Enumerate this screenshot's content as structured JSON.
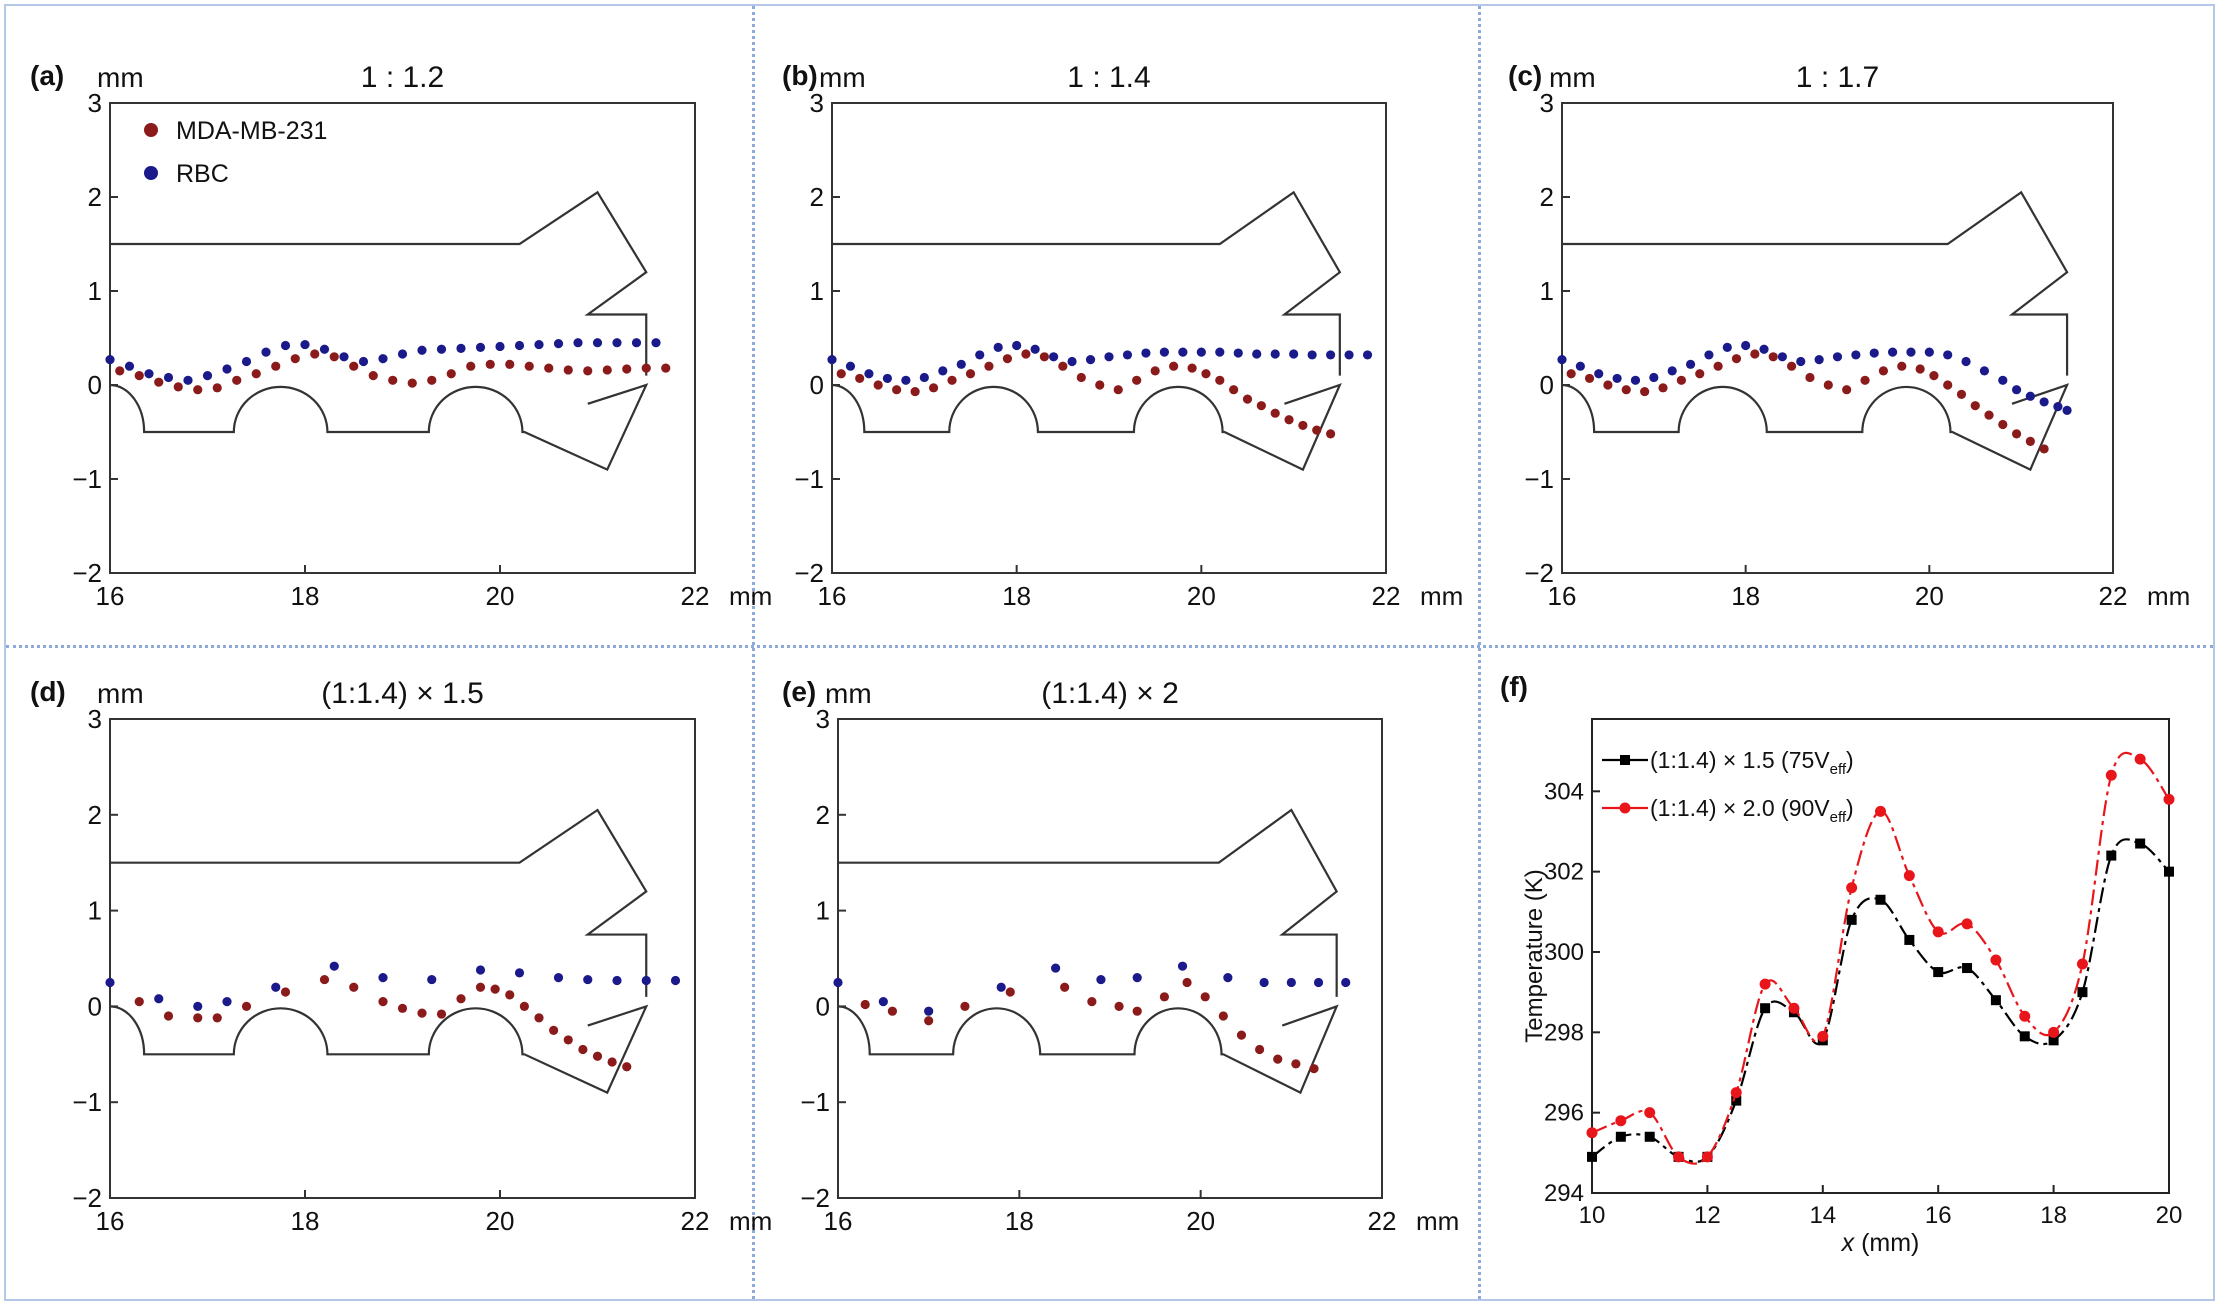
{
  "chart_data": [
    {
      "panel": "(a)",
      "title": "1 : 1.2",
      "type": "scatter",
      "xlabel": "mm",
      "ylabel": "mm",
      "xlim": [
        16,
        22
      ],
      "ylim": [
        -2,
        3
      ],
      "xticks": [
        "16",
        "18",
        "20",
        "22"
      ],
      "yticks": [
        "−2",
        "−1",
        "0",
        "1",
        "2",
        "3"
      ],
      "legend": {
        "placement": "top-left",
        "entries": [
          "MDA-MB-231",
          "RBC"
        ]
      },
      "colors": {
        "MDA-MB-231": "#8b1a1a",
        "RBC": "#1a1a8b"
      },
      "series": [
        {
          "name": "MDA-MB-231",
          "x": [
            16.1,
            16.3,
            16.5,
            16.7,
            16.9,
            17.1,
            17.3,
            17.5,
            17.7,
            17.9,
            18.1,
            18.3,
            18.5,
            18.7,
            18.9,
            19.1,
            19.3,
            19.5,
            19.7,
            19.9,
            20.1,
            20.3,
            20.5,
            20.7,
            20.9,
            21.1,
            21.3,
            21.5,
            21.7
          ],
          "y": [
            0.15,
            0.1,
            0.03,
            -0.02,
            -0.05,
            -0.03,
            0.05,
            0.12,
            0.2,
            0.28,
            0.33,
            0.3,
            0.2,
            0.1,
            0.05,
            0.02,
            0.05,
            0.12,
            0.2,
            0.22,
            0.22,
            0.2,
            0.18,
            0.16,
            0.15,
            0.16,
            0.17,
            0.18,
            0.18
          ]
        },
        {
          "name": "RBC",
          "x": [
            16.0,
            16.2,
            16.4,
            16.6,
            16.8,
            17.0,
            17.2,
            17.4,
            17.6,
            17.8,
            18.0,
            18.2,
            18.4,
            18.6,
            18.8,
            19.0,
            19.2,
            19.4,
            19.6,
            19.8,
            20.0,
            20.2,
            20.4,
            20.6,
            20.8,
            21.0,
            21.2,
            21.4,
            21.6
          ],
          "y": [
            0.27,
            0.2,
            0.12,
            0.08,
            0.05,
            0.1,
            0.17,
            0.25,
            0.35,
            0.42,
            0.43,
            0.38,
            0.3,
            0.25,
            0.28,
            0.33,
            0.37,
            0.38,
            0.39,
            0.4,
            0.41,
            0.42,
            0.43,
            0.44,
            0.45,
            0.45,
            0.45,
            0.45,
            0.45
          ]
        }
      ]
    },
    {
      "panel": "(b)",
      "title": "1 : 1.4",
      "type": "scatter",
      "xlabel": "mm",
      "ylabel": "mm",
      "xlim": [
        16,
        22
      ],
      "ylim": [
        -2,
        3
      ],
      "xticks": [
        "16",
        "18",
        "20",
        "22"
      ],
      "yticks": [
        "−2",
        "−1",
        "0",
        "1",
        "2",
        "3"
      ],
      "colors": {
        "MDA-MB-231": "#8b1a1a",
        "RBC": "#1a1a8b"
      },
      "series": [
        {
          "name": "MDA-MB-231",
          "x": [
            16.1,
            16.3,
            16.5,
            16.7,
            16.9,
            17.1,
            17.3,
            17.5,
            17.7,
            17.9,
            18.1,
            18.3,
            18.5,
            18.7,
            18.9,
            19.1,
            19.3,
            19.5,
            19.7,
            19.9,
            20.05,
            20.2,
            20.35,
            20.5,
            20.65,
            20.8,
            20.95,
            21.1,
            21.25,
            21.4
          ],
          "y": [
            0.12,
            0.07,
            0.0,
            -0.05,
            -0.07,
            -0.03,
            0.05,
            0.12,
            0.2,
            0.28,
            0.33,
            0.3,
            0.2,
            0.08,
            0.0,
            -0.05,
            0.05,
            0.15,
            0.2,
            0.18,
            0.12,
            0.05,
            -0.05,
            -0.15,
            -0.22,
            -0.3,
            -0.37,
            -0.43,
            -0.48,
            -0.52
          ]
        },
        {
          "name": "RBC",
          "x": [
            16.0,
            16.2,
            16.4,
            16.6,
            16.8,
            17.0,
            17.2,
            17.4,
            17.6,
            17.8,
            18.0,
            18.2,
            18.4,
            18.6,
            18.8,
            19.0,
            19.2,
            19.4,
            19.6,
            19.8,
            20.0,
            20.2,
            20.4,
            20.6,
            20.8,
            21.0,
            21.2,
            21.4,
            21.6,
            21.8
          ],
          "y": [
            0.27,
            0.2,
            0.12,
            0.07,
            0.05,
            0.08,
            0.15,
            0.22,
            0.32,
            0.4,
            0.42,
            0.38,
            0.3,
            0.25,
            0.27,
            0.3,
            0.32,
            0.34,
            0.35,
            0.35,
            0.35,
            0.35,
            0.34,
            0.33,
            0.33,
            0.33,
            0.32,
            0.32,
            0.32,
            0.32
          ]
        }
      ]
    },
    {
      "panel": "(c)",
      "title": "1 : 1.7",
      "type": "scatter",
      "xlabel": "mm",
      "ylabel": "mm",
      "xlim": [
        16,
        22
      ],
      "ylim": [
        -2,
        3
      ],
      "xticks": [
        "16",
        "18",
        "20",
        "22"
      ],
      "yticks": [
        "−2",
        "−1",
        "0",
        "1",
        "2",
        "3"
      ],
      "colors": {
        "MDA-MB-231": "#8b1a1a",
        "RBC": "#1a1a8b"
      },
      "series": [
        {
          "name": "MDA-MB-231",
          "x": [
            16.1,
            16.3,
            16.5,
            16.7,
            16.9,
            17.1,
            17.3,
            17.5,
            17.7,
            17.9,
            18.1,
            18.3,
            18.5,
            18.7,
            18.9,
            19.1,
            19.3,
            19.5,
            19.7,
            19.9,
            20.05,
            20.2,
            20.35,
            20.5,
            20.65,
            20.8,
            20.95,
            21.1,
            21.25
          ],
          "y": [
            0.12,
            0.07,
            0.0,
            -0.05,
            -0.07,
            -0.03,
            0.05,
            0.12,
            0.2,
            0.28,
            0.33,
            0.3,
            0.2,
            0.08,
            0.0,
            -0.05,
            0.05,
            0.15,
            0.2,
            0.17,
            0.1,
            0.0,
            -0.1,
            -0.22,
            -0.32,
            -0.42,
            -0.52,
            -0.6,
            -0.68
          ]
        },
        {
          "name": "RBC",
          "x": [
            16.0,
            16.2,
            16.4,
            16.6,
            16.8,
            17.0,
            17.2,
            17.4,
            17.6,
            17.8,
            18.0,
            18.2,
            18.4,
            18.6,
            18.8,
            19.0,
            19.2,
            19.4,
            19.6,
            19.8,
            20.0,
            20.2,
            20.4,
            20.6,
            20.8,
            20.95,
            21.1,
            21.25,
            21.4,
            21.5
          ],
          "y": [
            0.27,
            0.2,
            0.12,
            0.07,
            0.05,
            0.08,
            0.15,
            0.22,
            0.32,
            0.4,
            0.42,
            0.38,
            0.3,
            0.25,
            0.27,
            0.3,
            0.32,
            0.34,
            0.35,
            0.35,
            0.35,
            0.32,
            0.25,
            0.15,
            0.05,
            -0.05,
            -0.12,
            -0.18,
            -0.23,
            -0.27
          ]
        }
      ]
    },
    {
      "panel": "(d)",
      "title": "(1:1.4) × 1.5",
      "type": "scatter",
      "xlabel": "mm",
      "ylabel": "mm",
      "xlim": [
        16,
        22
      ],
      "ylim": [
        -2,
        3
      ],
      "xticks": [
        "16",
        "18",
        "20",
        "22"
      ],
      "yticks": [
        "−2",
        "−1",
        "0",
        "1",
        "2",
        "3"
      ],
      "colors": {
        "MDA-MB-231": "#8b1a1a",
        "RBC": "#1a1a8b"
      },
      "series": [
        {
          "name": "MDA-MB-231",
          "x": [
            16.3,
            16.6,
            16.9,
            17.1,
            17.4,
            17.8,
            18.2,
            18.5,
            18.8,
            19.0,
            19.2,
            19.4,
            19.6,
            19.8,
            19.95,
            20.1,
            20.25,
            20.4,
            20.55,
            20.7,
            20.85,
            21.0,
            21.15,
            21.3
          ],
          "y": [
            0.05,
            -0.1,
            -0.12,
            -0.12,
            0.0,
            0.15,
            0.28,
            0.2,
            0.05,
            -0.02,
            -0.07,
            -0.08,
            0.08,
            0.2,
            0.18,
            0.12,
            0.0,
            -0.12,
            -0.25,
            -0.35,
            -0.45,
            -0.52,
            -0.58,
            -0.63
          ]
        },
        {
          "name": "RBC",
          "x": [
            16.0,
            16.5,
            16.9,
            17.2,
            17.7,
            18.3,
            18.8,
            19.3,
            19.8,
            20.2,
            20.6,
            20.9,
            21.2,
            21.5,
            21.8
          ],
          "y": [
            0.25,
            0.08,
            0.0,
            0.05,
            0.2,
            0.42,
            0.3,
            0.28,
            0.38,
            0.35,
            0.3,
            0.28,
            0.27,
            0.27,
            0.27
          ]
        }
      ]
    },
    {
      "panel": "(e)",
      "title": "(1:1.4) × 2",
      "type": "scatter",
      "xlabel": "mm",
      "ylabel": "mm",
      "xlim": [
        16,
        22
      ],
      "ylim": [
        -2,
        3
      ],
      "xticks": [
        "16",
        "18",
        "20",
        "22"
      ],
      "yticks": [
        "−2",
        "−1",
        "0",
        "1",
        "2",
        "3"
      ],
      "colors": {
        "MDA-MB-231": "#8b1a1a",
        "RBC": "#1a1a8b"
      },
      "series": [
        {
          "name": "MDA-MB-231",
          "x": [
            16.3,
            16.6,
            17.0,
            17.4,
            17.9,
            18.5,
            18.8,
            19.1,
            19.3,
            19.6,
            19.85,
            20.05,
            20.25,
            20.45,
            20.65,
            20.85,
            21.05,
            21.25
          ],
          "y": [
            0.02,
            -0.05,
            -0.15,
            0.0,
            0.15,
            0.2,
            0.05,
            0.0,
            -0.05,
            0.1,
            0.25,
            0.1,
            -0.1,
            -0.3,
            -0.45,
            -0.55,
            -0.6,
            -0.65
          ]
        },
        {
          "name": "RBC",
          "x": [
            16.0,
            16.5,
            17.0,
            17.8,
            18.4,
            18.9,
            19.3,
            19.8,
            20.3,
            20.7,
            21.0,
            21.3,
            21.6
          ],
          "y": [
            0.25,
            0.05,
            -0.05,
            0.2,
            0.4,
            0.28,
            0.3,
            0.42,
            0.3,
            0.25,
            0.25,
            0.25,
            0.25
          ]
        }
      ]
    },
    {
      "panel": "(f)",
      "type": "line",
      "xlabel": "x (mm)",
      "ylabel": "Temperature (K)",
      "xlim": [
        10,
        20
      ],
      "ylim": [
        294,
        305.8
      ],
      "xticks": [
        "10",
        "12",
        "14",
        "16",
        "18",
        "20"
      ],
      "yticks": [
        "294",
        "296",
        "298",
        "300",
        "302",
        "304"
      ],
      "legend": {
        "placement": "top-left"
      },
      "x": [
        10.0,
        10.5,
        11.0,
        11.5,
        12.0,
        12.5,
        13.0,
        13.5,
        14.0,
        14.5,
        15.0,
        15.5,
        16.0,
        16.5,
        17.0,
        17.5,
        18.0,
        18.5,
        19.0,
        19.5,
        20.0
      ],
      "series": [
        {
          "name": "(1:1.4) × 1.5 (75V",
          "sub": "eff",
          "close": ")",
          "color": "#000000",
          "marker": "square",
          "values": [
            294.9,
            295.4,
            295.4,
            294.9,
            294.9,
            296.3,
            298.6,
            298.5,
            297.8,
            300.8,
            301.3,
            300.3,
            299.5,
            299.6,
            298.8,
            297.9,
            297.8,
            299.0,
            302.4,
            302.7,
            302.0
          ]
        },
        {
          "name": "(1:1.4) × 2.0 (90V",
          "sub": "eff",
          "close": ")",
          "color": "#e8161b",
          "marker": "circle",
          "values": [
            295.5,
            295.8,
            296.0,
            294.9,
            294.9,
            296.5,
            299.2,
            298.6,
            297.9,
            301.6,
            303.5,
            301.9,
            300.5,
            300.7,
            299.8,
            298.4,
            298.0,
            299.7,
            304.4,
            304.8,
            303.8
          ]
        }
      ]
    }
  ]
}
